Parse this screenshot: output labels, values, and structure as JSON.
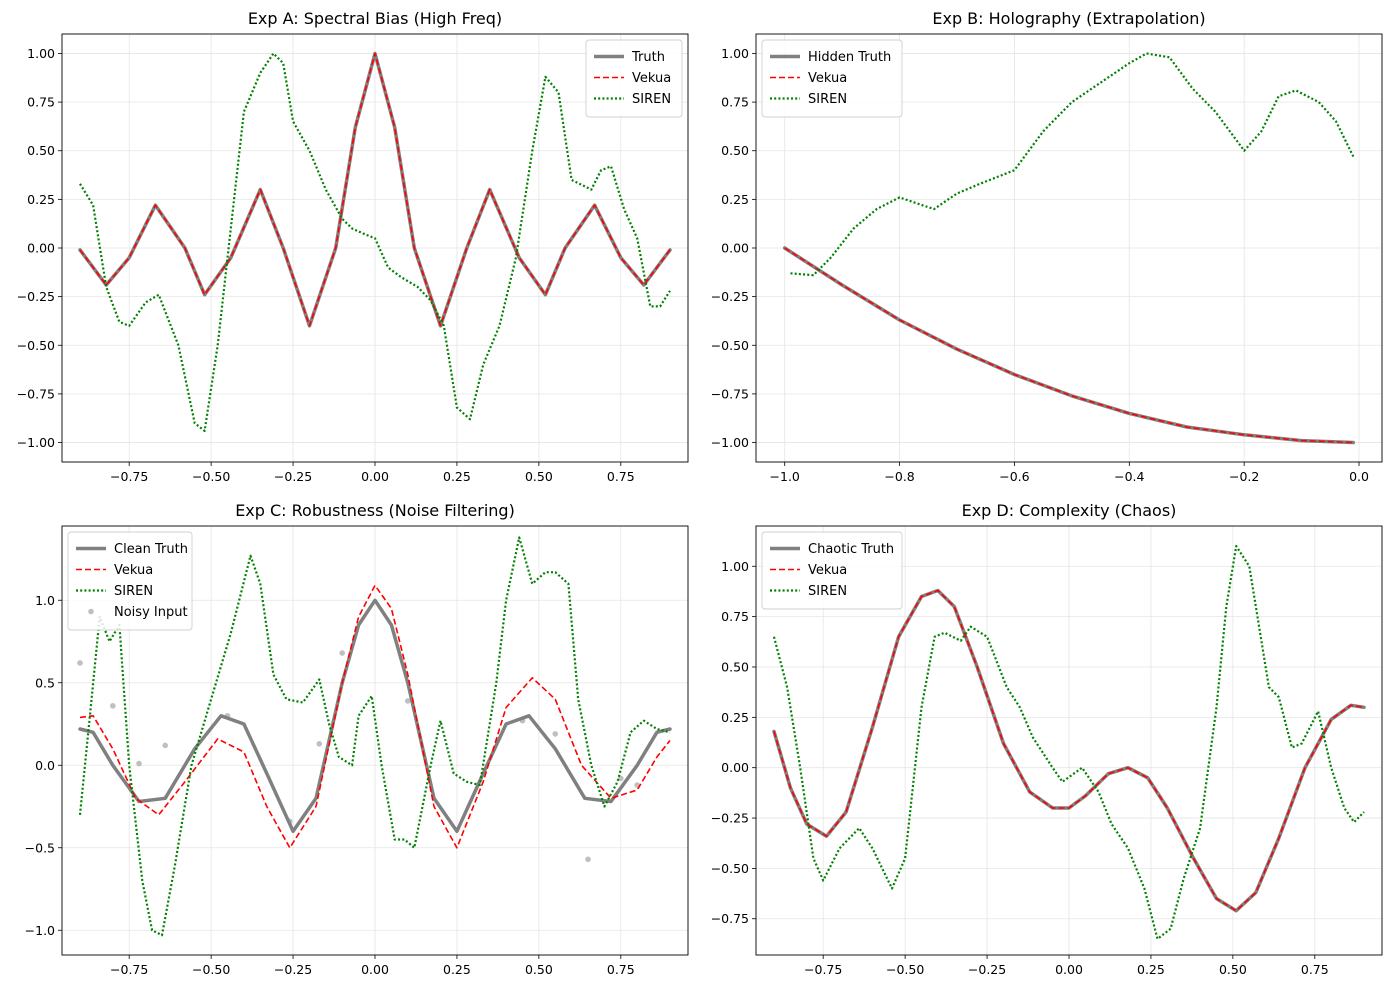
{
  "chart_data": [
    {
      "type": "line",
      "title": "Exp A: Spectral Bias (High Freq)",
      "xlim": [
        -0.955,
        0.955
      ],
      "ylim": [
        -1.1,
        1.1
      ],
      "xticks": [
        -0.75,
        -0.5,
        -0.25,
        0.0,
        0.25,
        0.5,
        0.75
      ],
      "xtick_labels": [
        "−0.75",
        "−0.50",
        "−0.25",
        "0.00",
        "0.25",
        "0.50",
        "0.75"
      ],
      "yticks": [
        -1.0,
        -0.75,
        -0.5,
        -0.25,
        0.0,
        0.25,
        0.5,
        0.75,
        1.0
      ],
      "ytick_labels": [
        "−1.00",
        "−0.75",
        "−0.50",
        "−0.25",
        "0.00",
        "0.25",
        "0.50",
        "0.75",
        "1.00"
      ],
      "legend_position": "top-right",
      "grid": true,
      "series": [
        {
          "name": "Truth",
          "color": "#808080",
          "style": "solid",
          "x": [
            -0.9,
            -0.82,
            -0.75,
            -0.67,
            -0.58,
            -0.52,
            -0.44,
            -0.35,
            -0.28,
            -0.2,
            -0.12,
            -0.06,
            0.0,
            0.06,
            0.12,
            0.2,
            0.28,
            0.35,
            0.44,
            0.52,
            0.58,
            0.67,
            0.75,
            0.82,
            0.9
          ],
          "y": [
            -0.01,
            -0.19,
            -0.05,
            0.22,
            0.0,
            -0.24,
            -0.05,
            0.3,
            0.0,
            -0.4,
            0.0,
            0.62,
            1.0,
            0.62,
            0.0,
            -0.4,
            0.0,
            0.3,
            -0.05,
            -0.24,
            0.0,
            0.22,
            -0.05,
            -0.19,
            -0.01
          ]
        },
        {
          "name": "Vekua",
          "color": "#ff0000",
          "style": "dashed",
          "x": [
            -0.9,
            -0.82,
            -0.75,
            -0.67,
            -0.58,
            -0.52,
            -0.44,
            -0.35,
            -0.28,
            -0.2,
            -0.12,
            -0.06,
            0.0,
            0.06,
            0.12,
            0.2,
            0.28,
            0.35,
            0.44,
            0.52,
            0.58,
            0.67,
            0.75,
            0.82,
            0.9
          ],
          "y": [
            -0.01,
            -0.19,
            -0.05,
            0.22,
            0.0,
            -0.24,
            -0.05,
            0.3,
            0.0,
            -0.4,
            0.0,
            0.62,
            1.0,
            0.62,
            0.0,
            -0.4,
            0.0,
            0.3,
            -0.05,
            -0.24,
            0.0,
            0.22,
            -0.05,
            -0.19,
            -0.01
          ]
        },
        {
          "name": "SIREN",
          "color": "#008000",
          "style": "dotted",
          "x": [
            -0.9,
            -0.86,
            -0.82,
            -0.78,
            -0.75,
            -0.7,
            -0.66,
            -0.6,
            -0.55,
            -0.52,
            -0.48,
            -0.44,
            -0.4,
            -0.35,
            -0.31,
            -0.28,
            -0.25,
            -0.2,
            -0.15,
            -0.1,
            -0.07,
            -0.03,
            0.0,
            0.04,
            0.08,
            0.13,
            0.17,
            0.21,
            0.25,
            0.29,
            0.33,
            0.38,
            0.43,
            0.48,
            0.52,
            0.56,
            0.6,
            0.66,
            0.69,
            0.72,
            0.76,
            0.8,
            0.84,
            0.87,
            0.9
          ],
          "y": [
            0.33,
            0.22,
            -0.2,
            -0.38,
            -0.4,
            -0.28,
            -0.24,
            -0.5,
            -0.9,
            -0.94,
            -0.5,
            0.1,
            0.7,
            0.9,
            1.0,
            0.95,
            0.65,
            0.5,
            0.3,
            0.15,
            0.1,
            0.07,
            0.05,
            -0.1,
            -0.15,
            -0.2,
            -0.27,
            -0.4,
            -0.82,
            -0.88,
            -0.6,
            -0.4,
            -0.05,
            0.5,
            0.88,
            0.8,
            0.35,
            0.3,
            0.4,
            0.42,
            0.2,
            0.05,
            -0.3,
            -0.3,
            -0.22
          ]
        }
      ]
    },
    {
      "type": "line",
      "title": "Exp B: Holography (Extrapolation)",
      "xlim": [
        -1.05,
        0.04
      ],
      "ylim": [
        -1.1,
        1.1
      ],
      "xticks": [
        -1.0,
        -0.8,
        -0.6,
        -0.4,
        -0.2,
        0.0
      ],
      "xtick_labels": [
        "−1.0",
        "−0.8",
        "−0.6",
        "−0.4",
        "−0.2",
        "0.0"
      ],
      "yticks": [
        -1.0,
        -0.75,
        -0.5,
        -0.25,
        0.0,
        0.25,
        0.5,
        0.75,
        1.0
      ],
      "ytick_labels": [
        "−1.00",
        "−0.75",
        "−0.50",
        "−0.25",
        "0.00",
        "0.25",
        "0.50",
        "0.75",
        "1.00"
      ],
      "legend_position": "top-left",
      "grid": true,
      "series": [
        {
          "name": "Hidden Truth",
          "color": "#808080",
          "style": "solid",
          "x": [
            -1.0,
            -0.9,
            -0.8,
            -0.7,
            -0.6,
            -0.5,
            -0.4,
            -0.3,
            -0.2,
            -0.1,
            -0.01
          ],
          "y": [
            0.0,
            -0.19,
            -0.37,
            -0.52,
            -0.65,
            -0.76,
            -0.85,
            -0.92,
            -0.96,
            -0.99,
            -1.0
          ]
        },
        {
          "name": "Vekua",
          "color": "#ff0000",
          "style": "dashed",
          "x": [
            -1.0,
            -0.9,
            -0.8,
            -0.7,
            -0.6,
            -0.5,
            -0.4,
            -0.3,
            -0.2,
            -0.1,
            -0.01
          ],
          "y": [
            0.0,
            -0.19,
            -0.37,
            -0.52,
            -0.65,
            -0.76,
            -0.85,
            -0.92,
            -0.96,
            -0.99,
            -1.0
          ]
        },
        {
          "name": "SIREN",
          "color": "#008000",
          "style": "dotted",
          "x": [
            -0.99,
            -0.95,
            -0.92,
            -0.88,
            -0.84,
            -0.8,
            -0.77,
            -0.74,
            -0.7,
            -0.66,
            -0.6,
            -0.55,
            -0.5,
            -0.45,
            -0.4,
            -0.37,
            -0.33,
            -0.29,
            -0.25,
            -0.2,
            -0.17,
            -0.14,
            -0.11,
            -0.07,
            -0.04,
            -0.01
          ],
          "y": [
            -0.13,
            -0.14,
            -0.05,
            0.1,
            0.2,
            0.26,
            0.23,
            0.2,
            0.28,
            0.33,
            0.4,
            0.6,
            0.75,
            0.85,
            0.95,
            1.0,
            0.98,
            0.82,
            0.7,
            0.5,
            0.6,
            0.78,
            0.81,
            0.75,
            0.65,
            0.47
          ]
        }
      ]
    },
    {
      "type": "line",
      "title": "Exp C: Robustness (Noise Filtering)",
      "xlim": [
        -0.955,
        0.955
      ],
      "ylim": [
        -1.15,
        1.45
      ],
      "xticks": [
        -0.75,
        -0.5,
        -0.25,
        0.0,
        0.25,
        0.5,
        0.75
      ],
      "xtick_labels": [
        "−0.75",
        "−0.50",
        "−0.25",
        "0.00",
        "0.25",
        "0.50",
        "0.75"
      ],
      "yticks": [
        -1.0,
        -0.5,
        0.0,
        0.5,
        1.0
      ],
      "ytick_labels": [
        "−1.0",
        "−0.5",
        "0.0",
        "0.5",
        "1.0"
      ],
      "legend_position": "top-left",
      "grid": true,
      "series": [
        {
          "name": "Clean Truth",
          "color": "#808080",
          "style": "solid",
          "x": [
            -0.9,
            -0.86,
            -0.8,
            -0.72,
            -0.64,
            -0.55,
            -0.47,
            -0.4,
            -0.33,
            -0.25,
            -0.18,
            -0.1,
            -0.05,
            0.0,
            0.05,
            0.1,
            0.18,
            0.25,
            0.33,
            0.4,
            0.47,
            0.55,
            0.64,
            0.72,
            0.8,
            0.86,
            0.9
          ],
          "y": [
            0.22,
            0.2,
            0.0,
            -0.22,
            -0.2,
            0.1,
            0.3,
            0.25,
            -0.05,
            -0.4,
            -0.2,
            0.5,
            0.85,
            1.0,
            0.85,
            0.5,
            -0.2,
            -0.4,
            -0.05,
            0.25,
            0.3,
            0.1,
            -0.2,
            -0.22,
            0.0,
            0.2,
            0.22
          ]
        },
        {
          "name": "Vekua",
          "color": "#ff0000",
          "style": "dashed",
          "x": [
            -0.9,
            -0.86,
            -0.8,
            -0.73,
            -0.66,
            -0.58,
            -0.48,
            -0.4,
            -0.33,
            -0.26,
            -0.18,
            -0.1,
            -0.05,
            0.0,
            0.05,
            0.1,
            0.18,
            0.25,
            0.33,
            0.4,
            0.48,
            0.55,
            0.63,
            0.72,
            0.8,
            0.86,
            0.9
          ],
          "y": [
            0.29,
            0.3,
            0.1,
            -0.2,
            -0.3,
            -0.1,
            0.16,
            0.08,
            -0.25,
            -0.5,
            -0.25,
            0.5,
            0.9,
            1.09,
            0.95,
            0.55,
            -0.25,
            -0.5,
            -0.1,
            0.35,
            0.53,
            0.4,
            0.0,
            -0.2,
            -0.15,
            0.05,
            0.15
          ]
        },
        {
          "name": "SIREN",
          "color": "#008000",
          "style": "dotted",
          "x": [
            -0.9,
            -0.87,
            -0.84,
            -0.81,
            -0.78,
            -0.75,
            -0.71,
            -0.68,
            -0.65,
            -0.61,
            -0.56,
            -0.5,
            -0.44,
            -0.38,
            -0.35,
            -0.31,
            -0.27,
            -0.22,
            -0.17,
            -0.14,
            -0.11,
            -0.07,
            -0.05,
            -0.01,
            0.02,
            0.06,
            0.09,
            0.12,
            0.17,
            0.2,
            0.24,
            0.28,
            0.32,
            0.37,
            0.4,
            0.44,
            0.48,
            0.52,
            0.55,
            0.59,
            0.62,
            0.66,
            0.7,
            0.74,
            0.78,
            0.82,
            0.86,
            0.9
          ],
          "y": [
            -0.3,
            0.3,
            0.9,
            0.75,
            0.85,
            0.0,
            -0.7,
            -1.0,
            -1.03,
            -0.6,
            0.0,
            0.4,
            0.8,
            1.27,
            1.1,
            0.55,
            0.4,
            0.38,
            0.52,
            0.25,
            0.05,
            0.0,
            0.3,
            0.42,
            0.0,
            -0.45,
            -0.45,
            -0.5,
            0.0,
            0.27,
            -0.05,
            -0.1,
            -0.12,
            0.5,
            1.0,
            1.38,
            1.1,
            1.17,
            1.17,
            1.1,
            0.4,
            0.0,
            -0.25,
            -0.1,
            0.2,
            0.27,
            0.22,
            0.2
          ]
        }
      ],
      "scatter": {
        "name": "Noisy Input",
        "color": "#bfbfbf",
        "x": [
          -0.9,
          -0.8,
          -0.72,
          -0.64,
          -0.45,
          -0.26,
          -0.17,
          -0.1,
          0.1,
          0.45,
          0.55,
          0.65,
          0.75,
          0.8
        ],
        "y": [
          0.62,
          0.36,
          0.01,
          0.12,
          0.3,
          -0.34,
          0.13,
          0.68,
          0.39,
          0.27,
          0.19,
          -0.57,
          -0.08,
          -0.12
        ]
      }
    },
    {
      "type": "line",
      "title": "Exp D: Complexity (Chaos)",
      "xlim": [
        -0.955,
        0.955
      ],
      "ylim": [
        -0.93,
        1.2
      ],
      "xticks": [
        -0.75,
        -0.5,
        -0.25,
        0.0,
        0.25,
        0.5,
        0.75
      ],
      "xtick_labels": [
        "−0.75",
        "−0.50",
        "−0.25",
        "0.00",
        "0.25",
        "0.50",
        "0.75"
      ],
      "yticks": [
        -0.75,
        -0.5,
        -0.25,
        0.0,
        0.25,
        0.5,
        0.75,
        1.0
      ],
      "ytick_labels": [
        "−0.75",
        "−0.50",
        "−0.25",
        "0.00",
        "0.25",
        "0.50",
        "0.75",
        "1.00"
      ],
      "legend_position": "top-left",
      "grid": true,
      "series": [
        {
          "name": "Chaotic Truth",
          "color": "#808080",
          "style": "solid",
          "x": [
            -0.9,
            -0.85,
            -0.8,
            -0.74,
            -0.68,
            -0.6,
            -0.52,
            -0.45,
            -0.4,
            -0.35,
            -0.28,
            -0.2,
            -0.12,
            -0.05,
            0.0,
            0.05,
            0.12,
            0.18,
            0.24,
            0.3,
            0.38,
            0.45,
            0.51,
            0.57,
            0.64,
            0.72,
            0.8,
            0.86,
            0.9
          ],
          "y": [
            0.18,
            -0.1,
            -0.28,
            -0.34,
            -0.22,
            0.2,
            0.65,
            0.85,
            0.88,
            0.8,
            0.5,
            0.12,
            -0.12,
            -0.2,
            -0.2,
            -0.14,
            -0.03,
            0.0,
            -0.05,
            -0.2,
            -0.45,
            -0.65,
            -0.71,
            -0.62,
            -0.35,
            0.0,
            0.24,
            0.31,
            0.3
          ]
        },
        {
          "name": "Vekua",
          "color": "#ff0000",
          "style": "dashed",
          "x": [
            -0.9,
            -0.85,
            -0.8,
            -0.74,
            -0.68,
            -0.6,
            -0.52,
            -0.45,
            -0.4,
            -0.35,
            -0.28,
            -0.2,
            -0.12,
            -0.05,
            0.0,
            0.05,
            0.12,
            0.18,
            0.24,
            0.3,
            0.38,
            0.45,
            0.51,
            0.57,
            0.64,
            0.72,
            0.8,
            0.86,
            0.9
          ],
          "y": [
            0.18,
            -0.1,
            -0.28,
            -0.34,
            -0.22,
            0.2,
            0.65,
            0.85,
            0.88,
            0.8,
            0.5,
            0.12,
            -0.12,
            -0.2,
            -0.2,
            -0.14,
            -0.03,
            0.0,
            -0.05,
            -0.2,
            -0.45,
            -0.65,
            -0.71,
            -0.62,
            -0.35,
            0.0,
            0.24,
            0.31,
            0.3
          ]
        },
        {
          "name": "SIREN",
          "color": "#008000",
          "style": "dotted",
          "x": [
            -0.9,
            -0.86,
            -0.82,
            -0.78,
            -0.75,
            -0.7,
            -0.64,
            -0.6,
            -0.54,
            -0.5,
            -0.45,
            -0.41,
            -0.38,
            -0.33,
            -0.3,
            -0.25,
            -0.19,
            -0.15,
            -0.11,
            -0.05,
            -0.02,
            0.04,
            0.09,
            0.13,
            0.18,
            0.23,
            0.27,
            0.31,
            0.35,
            0.4,
            0.45,
            0.48,
            0.51,
            0.55,
            0.58,
            0.61,
            0.64,
            0.68,
            0.71,
            0.76,
            0.8,
            0.84,
            0.87,
            0.9
          ],
          "y": [
            0.65,
            0.4,
            0.0,
            -0.45,
            -0.56,
            -0.4,
            -0.3,
            -0.4,
            -0.6,
            -0.45,
            0.3,
            0.65,
            0.67,
            0.63,
            0.7,
            0.65,
            0.4,
            0.3,
            0.15,
            0.0,
            -0.07,
            0.0,
            -0.12,
            -0.28,
            -0.4,
            -0.6,
            -0.85,
            -0.8,
            -0.55,
            -0.3,
            0.3,
            0.8,
            1.1,
            1.0,
            0.7,
            0.4,
            0.35,
            0.1,
            0.12,
            0.28,
            0.0,
            -0.2,
            -0.27,
            -0.22
          ]
        }
      ]
    }
  ]
}
